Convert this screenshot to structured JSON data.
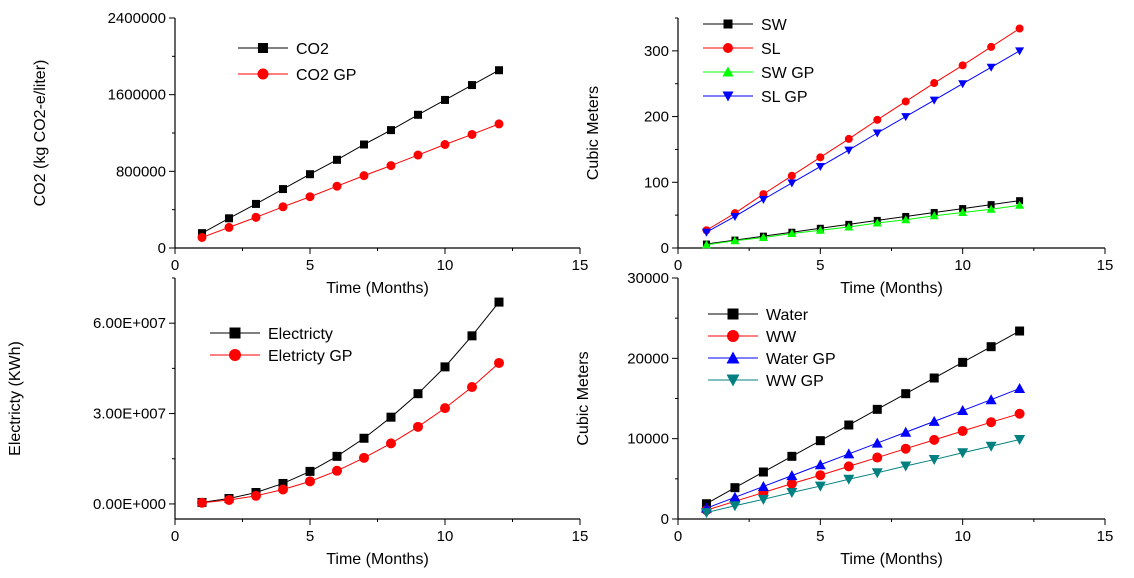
{
  "chart_data": [
    {
      "type": "line",
      "xlabel": "Time (Months)",
      "ylabel": "CO2 (kg CO2-e/liter)",
      "xlim": [
        0,
        15
      ],
      "ylim": [
        0,
        2400000
      ],
      "xticks": [
        "0",
        "5",
        "10",
        "15"
      ],
      "yticks": [
        "0",
        "800000",
        "1600000",
        "2400000"
      ],
      "x": [
        1,
        2,
        3,
        4,
        5,
        6,
        7,
        8,
        9,
        10,
        11,
        12
      ],
      "series": [
        {
          "name": "CO2",
          "color": "#000000",
          "marker": "square",
          "values": [
            155000,
            310000,
            460000,
            615000,
            770000,
            920000,
            1080000,
            1230000,
            1390000,
            1545000,
            1700000,
            1855000
          ]
        },
        {
          "name": "CO2  GP",
          "color": "#ff0000",
          "marker": "circle",
          "values": [
            110000,
            215000,
            320000,
            430000,
            535000,
            645000,
            755000,
            860000,
            970000,
            1080000,
            1185000,
            1295000
          ]
        }
      ],
      "legend": "top-left"
    },
    {
      "type": "line",
      "xlabel": "Time (Months)",
      "ylabel": "Cubic Meters",
      "xlim": [
        0,
        15
      ],
      "ylim": [
        0,
        350
      ],
      "xticks": [
        "0",
        "5",
        "10",
        "15"
      ],
      "yticks": [
        "0",
        "100",
        "200",
        "300"
      ],
      "x": [
        1,
        2,
        3,
        4,
        5,
        6,
        7,
        8,
        9,
        10,
        11,
        12
      ],
      "series": [
        {
          "name": "SW",
          "color": "#000000",
          "marker": "square",
          "values": [
            6,
            12,
            18,
            24,
            30,
            36,
            42,
            48,
            54,
            60,
            66,
            72
          ]
        },
        {
          "name": "SL",
          "color": "#ff0000",
          "marker": "circle",
          "values": [
            27,
            53,
            82,
            110,
            138,
            166,
            195,
            223,
            251,
            278,
            306,
            334
          ]
        },
        {
          "name": "SW GP",
          "color": "#00ff00",
          "marker": "triangle-up",
          "values": [
            5,
            11,
            16,
            22,
            27,
            32,
            38,
            43,
            49,
            54,
            59,
            65
          ]
        },
        {
          "name": "SL GP",
          "color": "#0000ff",
          "marker": "triangle-down",
          "values": [
            24,
            48,
            74,
            99,
            124,
            149,
            175,
            200,
            225,
            250,
            275,
            300
          ]
        }
      ],
      "legend": "top-left"
    },
    {
      "type": "line",
      "xlabel": "Time (Months)",
      "ylabel": "Electricty (KWh)",
      "xlim": [
        0,
        15
      ],
      "ylim": [
        -5000000,
        75000000
      ],
      "xticks": [
        "0",
        "5",
        "10",
        "15"
      ],
      "yticks": [
        "0.00E+000",
        "3.00E+007",
        "6.00E+007"
      ],
      "x": [
        1,
        2,
        3,
        4,
        5,
        6,
        7,
        8,
        9,
        10,
        11,
        12
      ],
      "series": [
        {
          "name": "Electricty",
          "color": "#000000",
          "marker": "square",
          "values": [
            500000,
            1800000,
            3800000,
            6800000,
            10800000,
            15800000,
            21800000,
            28800000,
            36600000,
            45500000,
            55800000,
            67000000
          ]
        },
        {
          "name": "Eletricty GP",
          "color": "#ff0000",
          "marker": "circle",
          "values": [
            400000,
            1300000,
            2700000,
            4800000,
            7500000,
            11000000,
            15300000,
            20100000,
            25600000,
            31800000,
            38800000,
            46800000
          ]
        }
      ],
      "legend": "top-left"
    },
    {
      "type": "line",
      "xlabel": "Time (Months)",
      "ylabel": "Cubic Meters",
      "xlim": [
        0,
        15
      ],
      "ylim": [
        0,
        30000
      ],
      "xticks": [
        "0",
        "5",
        "10",
        "15"
      ],
      "yticks": [
        "0",
        "10000",
        "20000",
        "30000"
      ],
      "x": [
        1,
        2,
        3,
        4,
        5,
        6,
        7,
        8,
        9,
        10,
        11,
        12
      ],
      "series": [
        {
          "name": "Water",
          "color": "#000000",
          "marker": "square",
          "values": [
            1900,
            3900,
            5850,
            7800,
            9750,
            11700,
            13650,
            15600,
            17550,
            19500,
            21450,
            23400
          ]
        },
        {
          "name": "WW",
          "color": "#ff0000",
          "marker": "circle",
          "values": [
            1100,
            2200,
            3300,
            4400,
            5450,
            6550,
            7650,
            8750,
            9850,
            10950,
            12050,
            13100
          ]
        },
        {
          "name": "Water GP",
          "color": "#0000ff",
          "marker": "triangle-up",
          "values": [
            1350,
            2700,
            4050,
            5400,
            6750,
            8100,
            9450,
            10800,
            12150,
            13500,
            14850,
            16250
          ]
        },
        {
          "name": "WW GP",
          "color": "#008080",
          "marker": "triangle-down",
          "values": [
            800,
            1650,
            2450,
            3300,
            4100,
            4950,
            5750,
            6600,
            7400,
            8250,
            9050,
            9900
          ]
        }
      ],
      "legend": "top-left"
    }
  ]
}
